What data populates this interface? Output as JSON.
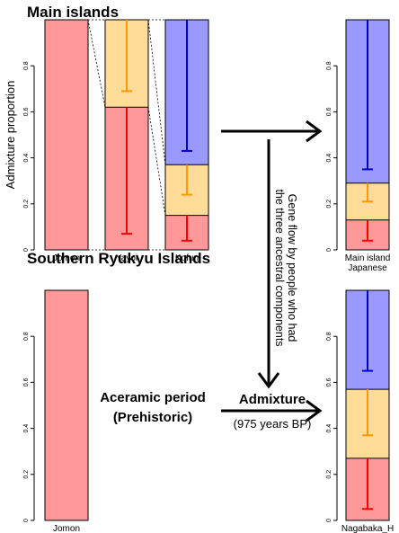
{
  "colors": {
    "jomon": "#ff9999",
    "yayoi": "#ffdd99",
    "kofun": "#9999ff",
    "err_jomon": "#ff0000",
    "err_yayoi": "#ff9900",
    "err_kofun": "#0000cc"
  },
  "labels": {
    "main_islands": "Main islands",
    "southern_ryukyu": "Southern Ryukyu Islands",
    "ylabel": "Admixture proportion",
    "aceramic_line1": "Aceramic period",
    "aceramic_line2": "(Prehistoric)",
    "admixture": "Admixture",
    "years": "(975 years BP)",
    "gene_flow_line1": "Gene flow by people who had",
    "gene_flow_line2": "the three ancestral components"
  },
  "chart_data": [
    {
      "type": "bar",
      "stacked": true,
      "categories": [
        "Jomon",
        "Yayoi",
        "Kofun"
      ],
      "series": [
        {
          "color": "#ff9999",
          "values": [
            1.0,
            0.62,
            0.15
          ],
          "err_upper": [
            null,
            0.07,
            0.04
          ],
          "err_color": "#ff0000"
        },
        {
          "color": "#ffdd99",
          "values": [
            0.0,
            0.38,
            0.22
          ],
          "err_upper": [
            null,
            0.69,
            0.24
          ],
          "err_color": "#ff9900"
        },
        {
          "color": "#9999ff",
          "values": [
            0.0,
            0.0,
            0.63
          ],
          "err_upper": [
            null,
            null,
            0.43
          ],
          "err_color": "#0000cc"
        }
      ],
      "ylim": [
        0,
        1
      ],
      "yticks": [
        "0",
        "0.2",
        "0.4",
        "0.6",
        "0.8"
      ],
      "title": "Main islands"
    },
    {
      "type": "bar",
      "stacked": true,
      "categories": [
        "Main island\nJapanese"
      ],
      "series": [
        {
          "color": "#ff9999",
          "values": [
            0.13
          ],
          "err_upper": [
            0.04
          ],
          "err_color": "#ff0000"
        },
        {
          "color": "#ffdd99",
          "values": [
            0.16
          ],
          "err_upper": [
            0.21
          ],
          "err_color": "#ff9900"
        },
        {
          "color": "#9999ff",
          "values": [
            0.71
          ],
          "err_upper": [
            0.35
          ],
          "err_color": "#0000cc"
        }
      ],
      "ylim": [
        0,
        1
      ],
      "yticks": [
        "0",
        "0.2",
        "0.4",
        "0.6",
        "0.8"
      ]
    },
    {
      "type": "bar",
      "stacked": true,
      "categories": [
        "Jomon"
      ],
      "series": [
        {
          "color": "#ff9999",
          "values": [
            1.0
          ],
          "err_upper": [
            null
          ],
          "err_color": "#ff0000"
        }
      ],
      "ylim": [
        0,
        1
      ],
      "yticks": [
        "0",
        "0.2",
        "0.4",
        "0.6",
        "0.8"
      ],
      "title": "Southern Ryukyu Islands"
    },
    {
      "type": "bar",
      "stacked": true,
      "categories": [
        "Nagabaka_H"
      ],
      "series": [
        {
          "color": "#ff9999",
          "values": [
            0.27
          ],
          "err_upper": [
            0.05
          ],
          "err_color": "#ff0000"
        },
        {
          "color": "#ffdd99",
          "values": [
            0.3
          ],
          "err_upper": [
            0.37
          ],
          "err_color": "#ff9900"
        },
        {
          "color": "#9999ff",
          "values": [
            0.43
          ],
          "err_upper": [
            0.65
          ],
          "err_color": "#0000cc"
        }
      ],
      "ylim": [
        0,
        1
      ],
      "yticks": [
        "0",
        "0.2",
        "0.4",
        "0.6",
        "0.8"
      ]
    }
  ]
}
